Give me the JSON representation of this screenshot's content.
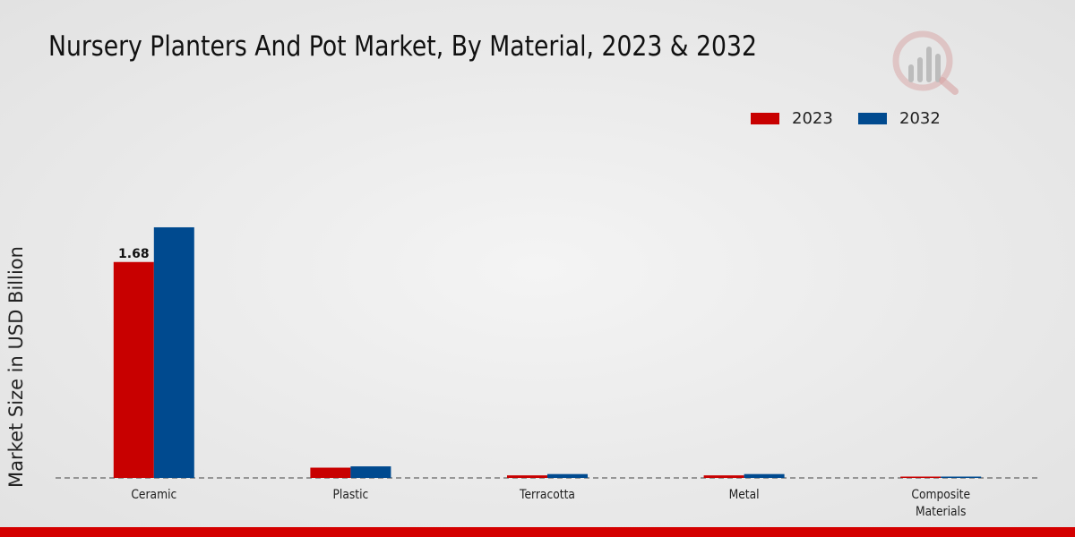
{
  "chart_data": {
    "type": "bar",
    "title": "Nursery Planters And Pot Market, By Material, 2023 & 2032",
    "ylabel": "Market Size in USD Billion",
    "xlabel": "",
    "categories": [
      "Ceramic",
      "Plastic",
      "Terracotta",
      "Metal",
      "Composite Materials"
    ],
    "series": [
      {
        "name": "2023",
        "color": "#c80000",
        "values": [
          1.68,
          0.08,
          0.02,
          0.02,
          0.005
        ]
      },
      {
        "name": "2032",
        "color": "#004a8f",
        "values": [
          1.95,
          0.09,
          0.03,
          0.03,
          0.01
        ]
      }
    ],
    "data_labels": [
      {
        "series": 0,
        "index": 0,
        "text": "1.68"
      }
    ],
    "ylim": [
      0,
      2.5
    ],
    "grid": false,
    "legend_position": "top-right"
  },
  "colors": {
    "accent_bar": "#d40000",
    "logo": "#c96b6b"
  },
  "icons": {
    "logo": "market-research-logo-icon"
  }
}
